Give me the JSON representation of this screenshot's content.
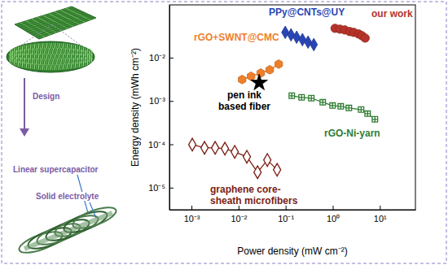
{
  "chart_data": {
    "type": "scatter",
    "x_label": "Power density (mW cm⁻²)",
    "y_label": "Energy density (mWh cm⁻²)",
    "log": true,
    "grid": false,
    "xlim": [
      0.00034,
      57
    ],
    "ylim": [
      3.1e-06,
      0.165
    ],
    "xticks": [
      {
        "value": 0.001,
        "label": "10⁻³"
      },
      {
        "value": 0.01,
        "label": "10⁻²"
      },
      {
        "value": 0.1,
        "label": "10⁻¹"
      },
      {
        "value": 1,
        "label": "10⁰"
      },
      {
        "value": 10,
        "label": "10¹"
      }
    ],
    "yticks": [
      {
        "value": 1e-05,
        "label": "10⁻⁵"
      },
      {
        "value": 0.0001,
        "label": "10⁻⁴"
      },
      {
        "value": 0.001,
        "label": "10⁻³"
      },
      {
        "value": 0.01,
        "label": "10⁻²"
      }
    ],
    "annotations": [
      "Design",
      "Linear supercapacitor",
      "Solid electrolyte"
    ],
    "series": [
      {
        "name": "our work",
        "color": "#b5332a",
        "marker": "circle",
        "line_style": "solid",
        "x": [
          1.12,
          1.42,
          1.8,
          2.29,
          2.79,
          3.55,
          4.16,
          4.88
        ],
        "values": [
          0.0475,
          0.0455,
          0.0436,
          0.04,
          0.0383,
          0.0352,
          0.0322,
          0.0283
        ]
      },
      {
        "name": "PPy@CNTs@UY",
        "color": "#2945b5",
        "marker": "diamond",
        "line_style": "solid",
        "x": [
          0.098,
          0.13,
          0.171,
          0.227,
          0.299,
          0.396
        ],
        "values": [
          0.0383,
          0.0336,
          0.0296,
          0.026,
          0.0228,
          0.02
        ]
      },
      {
        "name": "rGO+SWNT@CMC",
        "color": "#f07f2a",
        "marker": "hexagon",
        "line_style": "solid",
        "x": [
          0.0119,
          0.0184,
          0.0296,
          0.046,
          0.0713
        ],
        "values": [
          0.00313,
          0.00372,
          0.00442,
          0.00525,
          0.00711
        ]
      },
      {
        "name": "pen ink based fiber",
        "color": "#000000",
        "marker": "star",
        "line_style": "none",
        "x": [
          0.0274
        ],
        "values": [
          0.00263
        ]
      },
      {
        "name": "rGO-Ni-yarn",
        "color": "#2f7d32",
        "marker": "square-cross",
        "line_style": "solid",
        "x": [
          0.135,
          0.218,
          0.351,
          0.614,
          0.991,
          1.48,
          2.2,
          4.0,
          5.5,
          7.87
        ],
        "values": [
          0.00132,
          0.00121,
          0.00116,
          0.000933,
          0.000785,
          0.000752,
          0.00069,
          0.000633,
          0.00051,
          0.000377
        ]
      },
      {
        "name": "graphene core-sheath microfibers",
        "color": "#7a1e14",
        "marker": "diamond-open",
        "line_style": "solid",
        "x": [
          0.00104,
          0.00189,
          0.00318,
          0.00513,
          0.00828,
          0.015,
          0.0253,
          0.0408,
          0.0658
        ],
        "values": [
          9.86e-05,
          8.3e-05,
          8.3e-05,
          7.96e-05,
          6.7e-05,
          5.17e-05,
          2.27e-05,
          4.35e-05,
          2.59e-05
        ]
      }
    ]
  }
}
